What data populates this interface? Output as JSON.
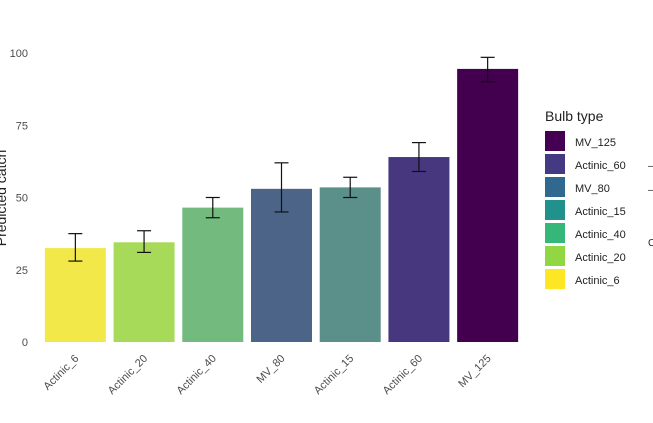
{
  "chart_data": {
    "type": "bar",
    "categories": [
      "Actinic_6",
      "Actinic_20",
      "Actinic_40",
      "MV_80",
      "Actinic_15",
      "Actinic_60",
      "MV_125"
    ],
    "values": [
      32.5,
      34.5,
      46.5,
      53,
      53.5,
      64,
      94.5
    ],
    "error": [
      [
        28,
        37.5
      ],
      [
        31,
        38.5
      ],
      [
        43,
        50
      ],
      [
        45,
        62
      ],
      [
        50,
        57
      ],
      [
        59,
        69
      ],
      [
        90,
        98.5
      ]
    ],
    "ylabel": "Predicted catch",
    "ylim": [
      0,
      100
    ],
    "yticks": [
      0,
      25,
      50,
      75,
      100
    ],
    "legend_title": "Bulb type",
    "legend_position": "right",
    "legend_items": [
      {
        "label": "MV_125",
        "color": "#440154"
      },
      {
        "label": "Actinic_60",
        "color": "#443A83"
      },
      {
        "label": "MV_80",
        "color": "#31688E"
      },
      {
        "label": "Actinic_15",
        "color": "#21918C"
      },
      {
        "label": "Actinic_40",
        "color": "#35B779"
      },
      {
        "label": "Actinic_20",
        "color": "#90D743"
      },
      {
        "label": "Actinic_6",
        "color": "#FDE725"
      }
    ],
    "bar_colors": [
      "#F2E84A",
      "#A7DA58",
      "#72BA7D",
      "#4C6487",
      "#5A8F8A",
      "#47377E",
      "#43004F"
    ],
    "grid": false
  },
  "fragment_right": {
    "line1": "–",
    "line2": "–",
    "line3": "C"
  }
}
